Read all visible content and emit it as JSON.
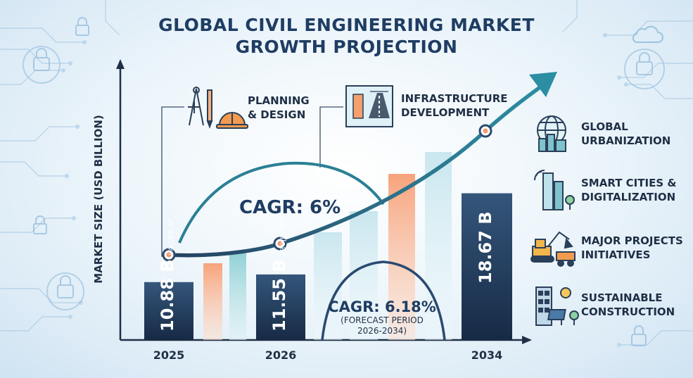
{
  "title_line1": "GLOBAL CIVIL ENGINEERING MARKET",
  "title_line2": "GROWTH PROJECTION",
  "y_axis_label": "MARKET SIZE (USD BILLION)",
  "stages": {
    "planning": [
      "PLANNING",
      "& DESIGN"
    ],
    "infrastructure": [
      "INFRASTRUCTURE",
      "DEVELOPMENT"
    ]
  },
  "cagr_main": "CAGR: 6%",
  "cagr_forecast": {
    "value": "CAGR: 6.18%",
    "note_line1": "(FORECAST PERIOD",
    "note_line2": "2026-2034)"
  },
  "factors": [
    {
      "label": "GLOBAL\nURBANIZATION",
      "icon": "globe-city-icon"
    },
    {
      "label": "SMART CITIES &\nDIGITALIZATION",
      "icon": "smart-city-icon"
    },
    {
      "label": "MAJOR PROJECTS\nINITIATIVES",
      "icon": "excavator-icon"
    },
    {
      "label": "SUSTAINABLE\nCONSTRUCTION",
      "icon": "green-building-icon"
    }
  ],
  "colors": {
    "bar_dark_top": "#2e4f73",
    "bar_dark_bottom": "#1a2f4d",
    "accent_teal": "#2a8a9e",
    "orange": "#f5a27a",
    "curve": "#2c4a6e"
  },
  "chart_data": {
    "type": "bar",
    "x": [
      "2025",
      "2026",
      "2034"
    ],
    "values": [
      10.88,
      11.55,
      18.67
    ],
    "value_labels": [
      "10.88 B",
      "11.55 B",
      "18.67 B"
    ],
    "sublabels": [
      "VALUED AT",
      "PROJECTED",
      ""
    ],
    "ylabel": "MARKET SIZE (USD BILLION)"
  }
}
